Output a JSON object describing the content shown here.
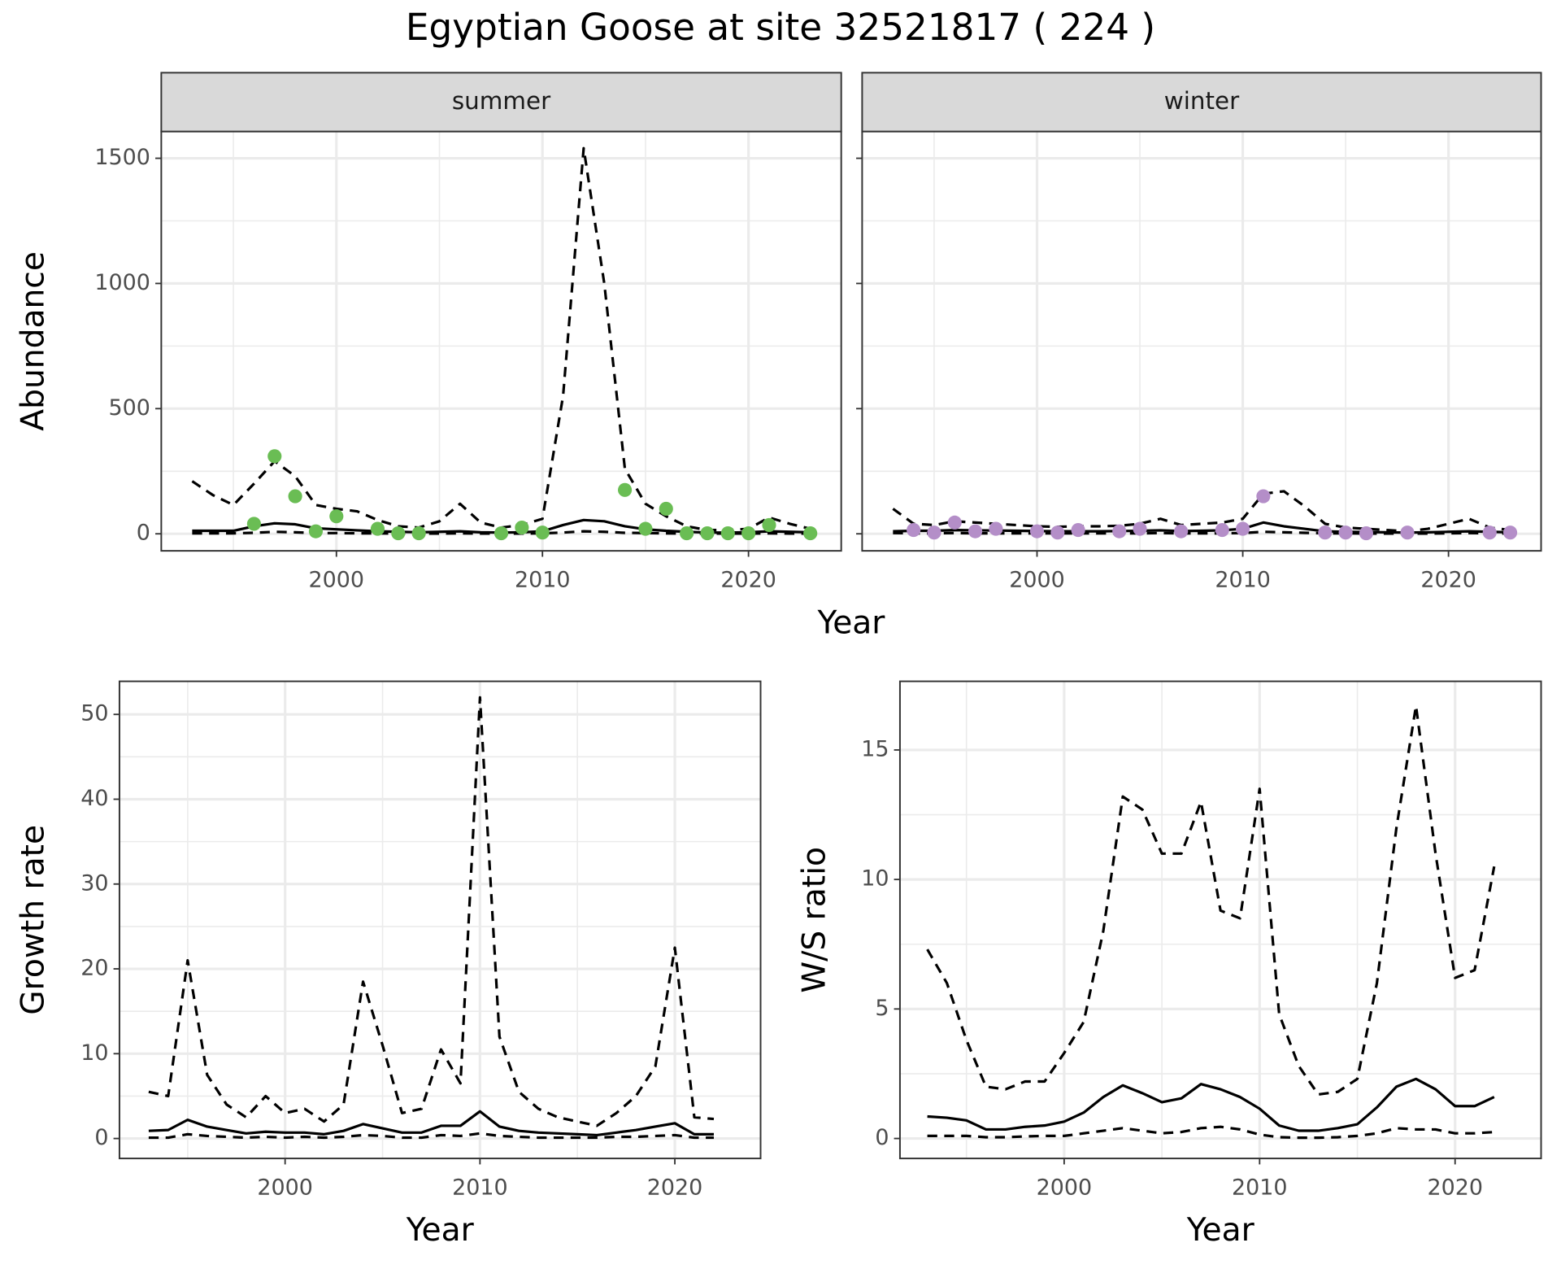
{
  "title": "Egyptian Goose at site 32521817 ( 224 )",
  "chart_data": [
    {
      "type": "line",
      "title": "summer",
      "xlabel": "Year",
      "ylabel": "Abundance",
      "x": [
        1993,
        1994,
        1995,
        1996,
        1997,
        1998,
        1999,
        2000,
        2001,
        2002,
        2003,
        2004,
        2005,
        2006,
        2007,
        2008,
        2009,
        2010,
        2011,
        2012,
        2013,
        2014,
        2015,
        2016,
        2017,
        2018,
        2019,
        2020,
        2021,
        2022,
        2023
      ],
      "xlim": [
        1991.5,
        2024.5
      ],
      "xticks": [
        2000,
        2010,
        2020
      ],
      "xminor": [
        1995,
        2005,
        2015
      ],
      "ylim": [
        -68,
        1607
      ],
      "yticks": [
        0,
        500,
        1000,
        1500
      ],
      "yminor": [
        250,
        750,
        1250
      ],
      "grid": true,
      "series": [
        {
          "color": "#000000",
          "dash": true,
          "values": [
            2,
            2,
            2,
            4,
            8,
            6,
            3,
            3,
            2,
            2,
            1,
            1,
            1,
            2,
            1,
            1,
            1,
            2,
            5,
            10,
            8,
            4,
            3,
            2,
            1,
            1,
            1,
            1,
            2,
            1,
            1
          ]
        },
        {
          "color": "#000000",
          "dash": false,
          "values": [
            12,
            12,
            12,
            30,
            42,
            38,
            22,
            18,
            14,
            10,
            8,
            6,
            8,
            10,
            6,
            5,
            6,
            10,
            35,
            55,
            50,
            30,
            18,
            12,
            8,
            5,
            5,
            6,
            10,
            8,
            6
          ]
        },
        {
          "color": "#000000",
          "dash": true,
          "values": [
            210,
            155,
            115,
            200,
            290,
            230,
            115,
            100,
            90,
            55,
            30,
            25,
            50,
            120,
            45,
            25,
            35,
            60,
            550,
            1540,
            1000,
            260,
            120,
            70,
            30,
            15,
            15,
            20,
            65,
            40,
            20
          ]
        }
      ],
      "points": {
        "color": "#6abd54",
        "x": [
          1996,
          1997,
          1998,
          1999,
          2000,
          2002,
          2003,
          2004,
          2008,
          2009,
          2010,
          2014,
          2015,
          2016,
          2017,
          2018,
          2019,
          2020,
          2021,
          2023
        ],
        "values": [
          40,
          310,
          150,
          10,
          70,
          20,
          2,
          2,
          2,
          25,
          5,
          175,
          20,
          100,
          2,
          2,
          2,
          2,
          35,
          2
        ]
      }
    },
    {
      "type": "line",
      "title": "winter",
      "x": [
        1993,
        1994,
        1995,
        1996,
        1997,
        1998,
        1999,
        2000,
        2001,
        2002,
        2003,
        2004,
        2005,
        2006,
        2007,
        2008,
        2009,
        2010,
        2011,
        2012,
        2013,
        2014,
        2015,
        2016,
        2017,
        2018,
        2019,
        2020,
        2021,
        2022,
        2023
      ],
      "xlim": [
        1991.5,
        2024.5
      ],
      "xticks": [
        2000,
        2010,
        2020
      ],
      "xminor": [
        1995,
        2005,
        2015
      ],
      "ylim": [
        -68,
        1607
      ],
      "yticks": [
        0,
        500,
        1000,
        1500
      ],
      "yminor": [
        250,
        750,
        1250
      ],
      "grid": true,
      "series": [
        {
          "color": "#000000",
          "dash": true,
          "values": [
            3,
            2,
            2,
            3,
            2,
            2,
            2,
            2,
            2,
            2,
            2,
            2,
            2,
            3,
            2,
            2,
            2,
            3,
            8,
            6,
            4,
            2,
            2,
            1,
            1,
            1,
            1,
            2,
            3,
            2,
            1
          ]
        },
        {
          "color": "#000000",
          "dash": false,
          "values": [
            10,
            12,
            12,
            15,
            14,
            13,
            12,
            11,
            10,
            10,
            10,
            11,
            12,
            14,
            11,
            12,
            14,
            20,
            45,
            30,
            20,
            10,
            8,
            7,
            6,
            5,
            6,
            8,
            10,
            8,
            6
          ]
        },
        {
          "color": "#000000",
          "dash": true,
          "values": [
            100,
            40,
            35,
            50,
            45,
            40,
            35,
            30,
            28,
            30,
            30,
            32,
            40,
            60,
            35,
            40,
            45,
            60,
            160,
            170,
            110,
            40,
            25,
            20,
            15,
            10,
            20,
            40,
            60,
            25,
            15
          ]
        }
      ],
      "points": {
        "color": "#b48ec8",
        "x": [
          1994,
          1995,
          1996,
          1997,
          1998,
          2000,
          2001,
          2002,
          2004,
          2005,
          2007,
          2009,
          2010,
          2011,
          2014,
          2015,
          2016,
          2018,
          2022,
          2023
        ],
        "values": [
          15,
          5,
          45,
          10,
          20,
          10,
          5,
          15,
          10,
          20,
          10,
          15,
          20,
          150,
          5,
          5,
          2,
          5,
          5,
          5
        ]
      }
    },
    {
      "type": "line",
      "xlabel": "Year",
      "ylabel": "Growth rate",
      "x": [
        1993,
        1994,
        1995,
        1996,
        1997,
        1998,
        1999,
        2000,
        2001,
        2002,
        2003,
        2004,
        2005,
        2006,
        2007,
        2008,
        2009,
        2010,
        2011,
        2012,
        2013,
        2014,
        2015,
        2016,
        2017,
        2018,
        2019,
        2020,
        2021,
        2022
      ],
      "xlim": [
        1991.5,
        2024.4
      ],
      "xticks": [
        2000,
        2010,
        2020
      ],
      "xminor": [
        1995,
        2005,
        2015
      ],
      "ylim": [
        -2.35,
        53.9
      ],
      "yticks": [
        0,
        10,
        20,
        30,
        40,
        50
      ],
      "yminor": [
        5,
        15,
        25,
        35,
        45
      ],
      "grid": true,
      "series": [
        {
          "color": "#000000",
          "dash": true,
          "values": [
            0.1,
            0.1,
            0.5,
            0.3,
            0.2,
            0.1,
            0.2,
            0.1,
            0.2,
            0.1,
            0.2,
            0.4,
            0.3,
            0.1,
            0.1,
            0.4,
            0.3,
            0.6,
            0.3,
            0.2,
            0.1,
            0.1,
            0.1,
            0.1,
            0.2,
            0.2,
            0.3,
            0.4,
            0.1,
            0.1
          ]
        },
        {
          "color": "#000000",
          "dash": false,
          "values": [
            0.9,
            1,
            2.2,
            1.4,
            1,
            0.6,
            0.8,
            0.7,
            0.7,
            0.5,
            0.9,
            1.7,
            1.2,
            0.7,
            0.7,
            1.5,
            1.5,
            3.2,
            1.4,
            0.9,
            0.7,
            0.6,
            0.5,
            0.4,
            0.7,
            1,
            1.4,
            1.8,
            0.5,
            0.5
          ]
        },
        {
          "color": "#000000",
          "dash": true,
          "values": [
            5.5,
            5,
            21,
            7.5,
            4,
            2.5,
            5,
            3,
            3.5,
            2,
            4,
            18.5,
            11,
            3,
            3.5,
            10.5,
            6.5,
            52,
            12,
            5.5,
            3.5,
            2.5,
            2,
            1.5,
            3,
            5,
            8.5,
            22.5,
            2.5,
            2.3
          ]
        }
      ]
    },
    {
      "type": "line",
      "xlabel": "Year",
      "ylabel": "W/S ratio",
      "x": [
        1993,
        1994,
        1995,
        1996,
        1997,
        1998,
        1999,
        2000,
        2001,
        2002,
        2003,
        2004,
        2005,
        2006,
        2007,
        2008,
        2009,
        2010,
        2011,
        2012,
        2013,
        2014,
        2015,
        2016,
        2017,
        2018,
        2019,
        2020,
        2021,
        2022
      ],
      "xlim": [
        1991.6,
        2024.4
      ],
      "xticks": [
        2000,
        2010,
        2020
      ],
      "xminor": [
        1995,
        2005,
        2015
      ],
      "ylim": [
        -0.77,
        17.65
      ],
      "yticks": [
        0,
        5,
        10,
        15
      ],
      "yminor": [
        2.5,
        7.5,
        12.5
      ],
      "grid": true,
      "series": [
        {
          "color": "#000000",
          "dash": true,
          "values": [
            0.1,
            0.1,
            0.1,
            0.05,
            0.05,
            0.08,
            0.1,
            0.1,
            0.2,
            0.3,
            0.4,
            0.3,
            0.2,
            0.25,
            0.4,
            0.45,
            0.35,
            0.15,
            0.05,
            0.03,
            0.03,
            0.05,
            0.1,
            0.2,
            0.4,
            0.35,
            0.35,
            0.2,
            0.2,
            0.25
          ]
        },
        {
          "color": "#000000",
          "dash": false,
          "values": [
            0.85,
            0.8,
            0.7,
            0.35,
            0.35,
            0.45,
            0.5,
            0.65,
            1,
            1.6,
            2.05,
            1.75,
            1.4,
            1.55,
            2.1,
            1.9,
            1.6,
            1.15,
            0.5,
            0.3,
            0.3,
            0.4,
            0.55,
            1.2,
            2,
            2.3,
            1.9,
            1.25,
            1.25,
            1.6
          ]
        },
        {
          "color": "#000000",
          "dash": true,
          "values": [
            7.3,
            6,
            3.8,
            2,
            1.9,
            2.2,
            2.2,
            3.3,
            4.5,
            8,
            13.2,
            12.7,
            11,
            11,
            13,
            8.8,
            8.5,
            13.5,
            4.8,
            2.8,
            1.7,
            1.8,
            2.3,
            6,
            12,
            16.7,
            11,
            6.2,
            6.5,
            10.5
          ]
        }
      ]
    }
  ]
}
